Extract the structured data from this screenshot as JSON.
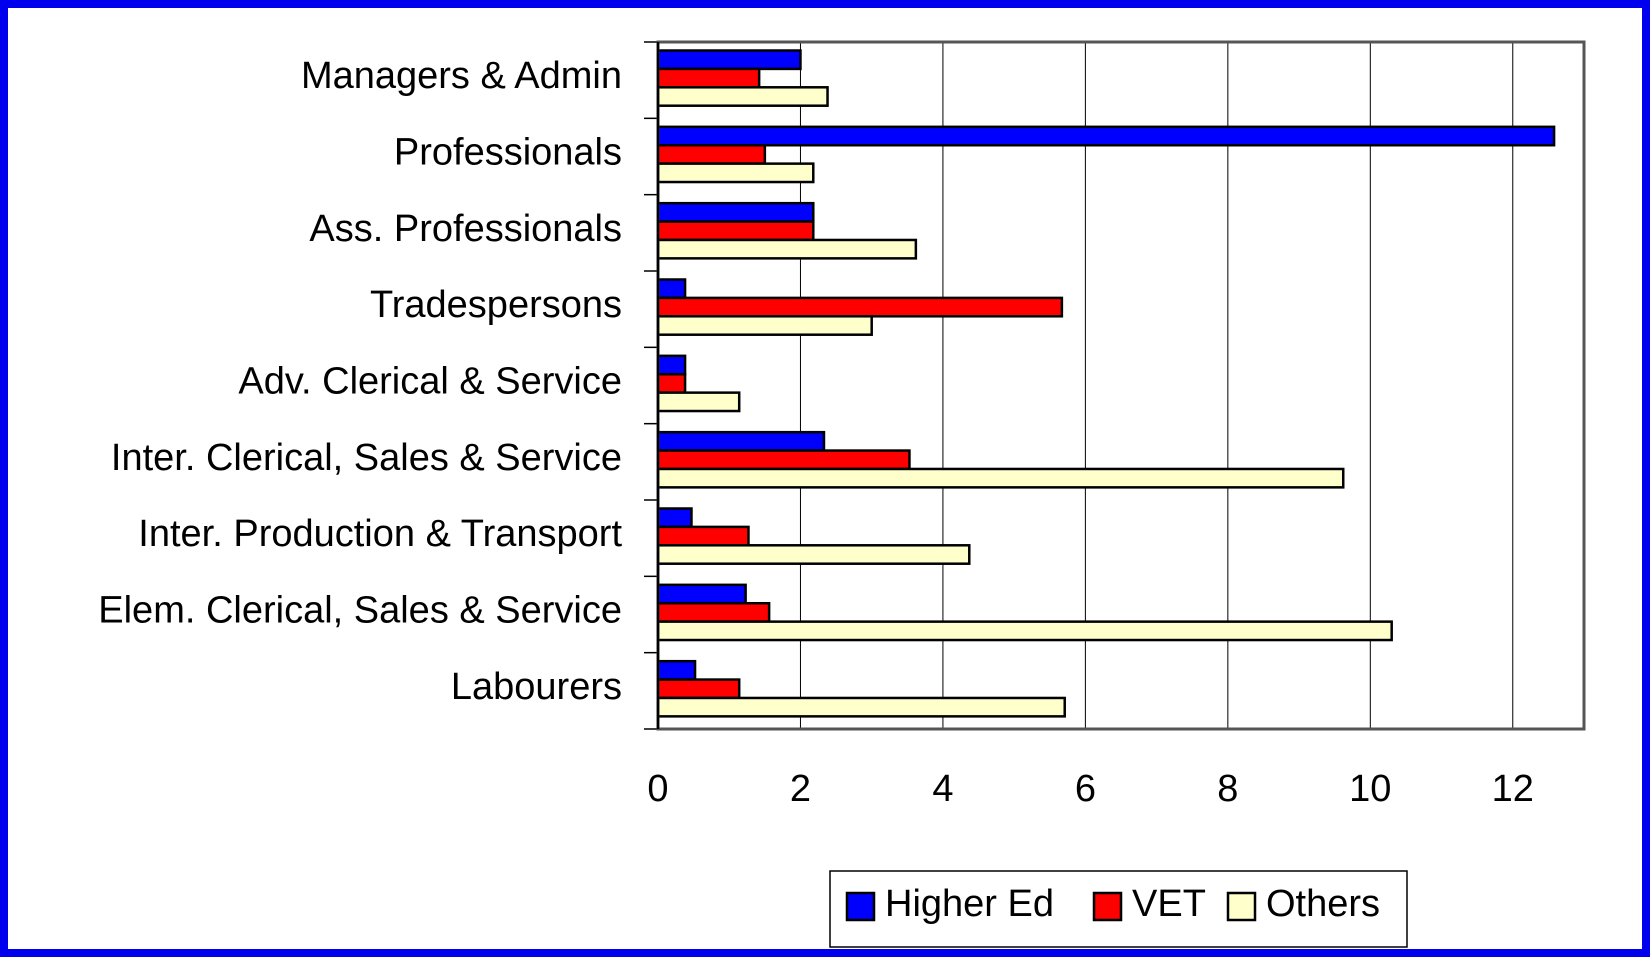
{
  "chart_data": {
    "type": "bar",
    "orientation": "horizontal",
    "categories": [
      "Managers & Admin",
      "Professionals",
      "Ass. Professionals",
      "Tradespersons",
      "Adv. Clerical & Service",
      "Inter. Clerical, Sales & Service",
      "Inter. Production & Transport",
      "Elem. Clerical, Sales & Service",
      "Labourers"
    ],
    "series": [
      {
        "name": "Higher Ed",
        "color": "#0000ff",
        "values": [
          2.0,
          12.58,
          2.18,
          0.38,
          0.38,
          2.33,
          0.47,
          1.23,
          0.52
        ]
      },
      {
        "name": "VET",
        "color": "#ff0000",
        "values": [
          1.42,
          1.5,
          2.18,
          5.67,
          0.38,
          3.53,
          1.27,
          1.56,
          1.14
        ]
      },
      {
        "name": "Others",
        "color": "#ffffcc",
        "values": [
          2.38,
          2.18,
          3.62,
          3.0,
          1.14,
          9.62,
          4.37,
          10.3,
          5.71
        ]
      }
    ],
    "xlim": [
      0,
      13
    ],
    "xticks": [
      0,
      2,
      4,
      6,
      8,
      10,
      12
    ],
    "grid": true,
    "legend": "bottom"
  }
}
